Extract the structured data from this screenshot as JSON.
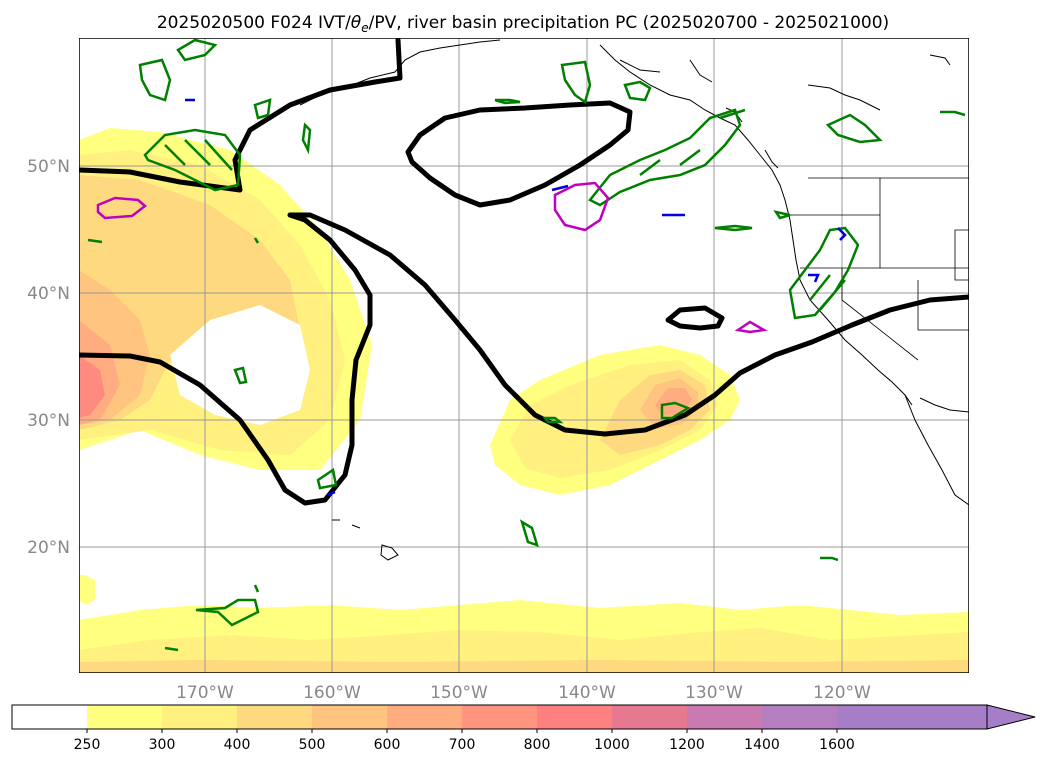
{
  "title": {
    "prefix": "2025020500 F024 IVT/",
    "theta": "θ",
    "theta_sub": "e",
    "suffix": "/PV, river basin precipitation PC (2025020700 - 2025021000)"
  },
  "map": {
    "lat_labels": [
      "50°N",
      "40°N",
      "30°N",
      "20°N"
    ],
    "lon_labels": [
      "170°W",
      "160°W",
      "150°W",
      "140°W",
      "130°W",
      "120°W"
    ]
  },
  "colorbar": {
    "ticks": [
      "250",
      "300",
      "400",
      "500",
      "600",
      "700",
      "800",
      "1000",
      "1200",
      "1400",
      "1600"
    ],
    "colors": [
      "#ffffff",
      "#ffff80",
      "#fff080",
      "#ffd980",
      "#ffc480",
      "#ffac80",
      "#ff9480",
      "#ff8080",
      "#e67890",
      "#c97ab0",
      "#b47ec0",
      "#a67ec8",
      "#9a7ed0"
    ]
  }
}
